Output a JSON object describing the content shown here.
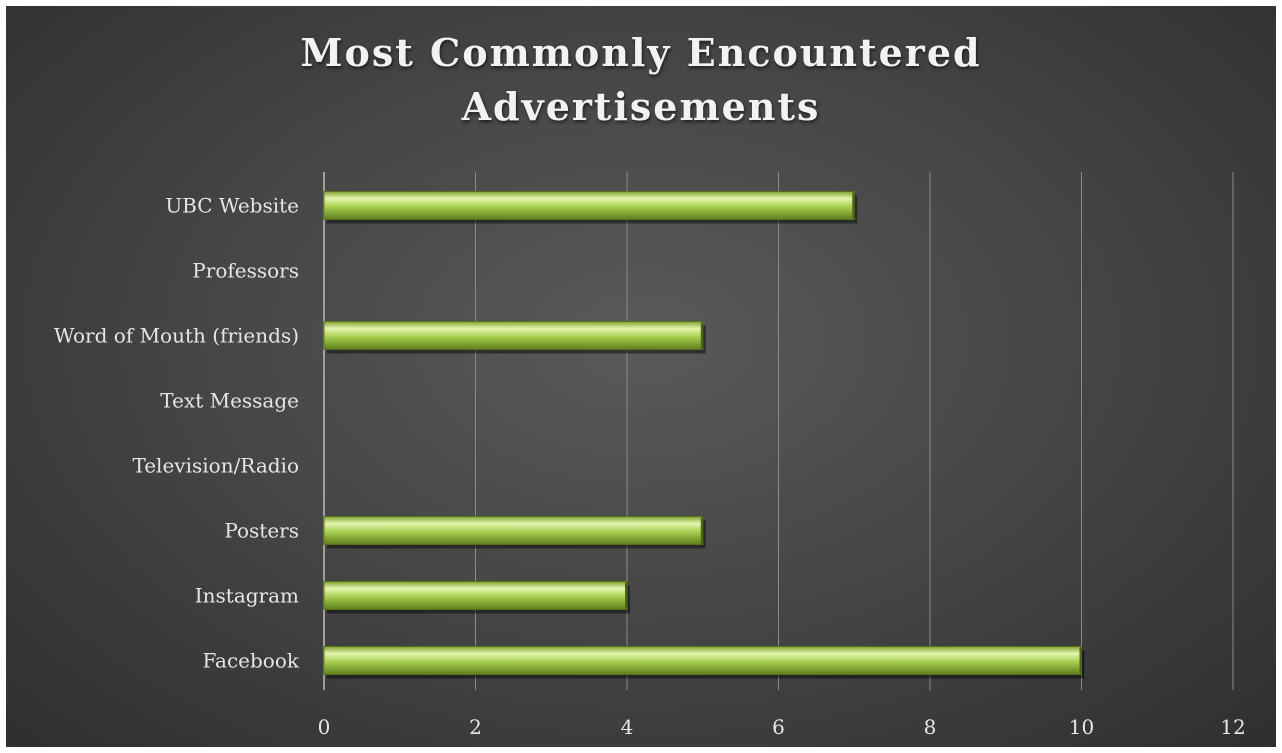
{
  "chart_data": {
    "type": "bar",
    "orientation": "horizontal",
    "title": "Most Commonly Encountered Advertisements",
    "categories": [
      "UBC Website",
      "Professors",
      "Word of Mouth (friends)",
      "Text Message",
      "Television/Radio",
      "Posters",
      "Instagram",
      "Facebook"
    ],
    "values": [
      7,
      0,
      5,
      0,
      0,
      5,
      4,
      10
    ],
    "xlim": [
      0,
      12
    ],
    "xticks": [
      "0",
      "2",
      "4",
      "6",
      "8",
      "10",
      "12"
    ],
    "grid": "vertical",
    "legend": "none",
    "xlabel": "",
    "ylabel": "",
    "colors": {
      "bar": "#a6cf4e",
      "bar_highlight": "#e4f5ae",
      "bar_shadow": "#5e7d1c",
      "background": "#474747",
      "grid": "#8a8a8a",
      "text": "#e6e6e6"
    }
  }
}
